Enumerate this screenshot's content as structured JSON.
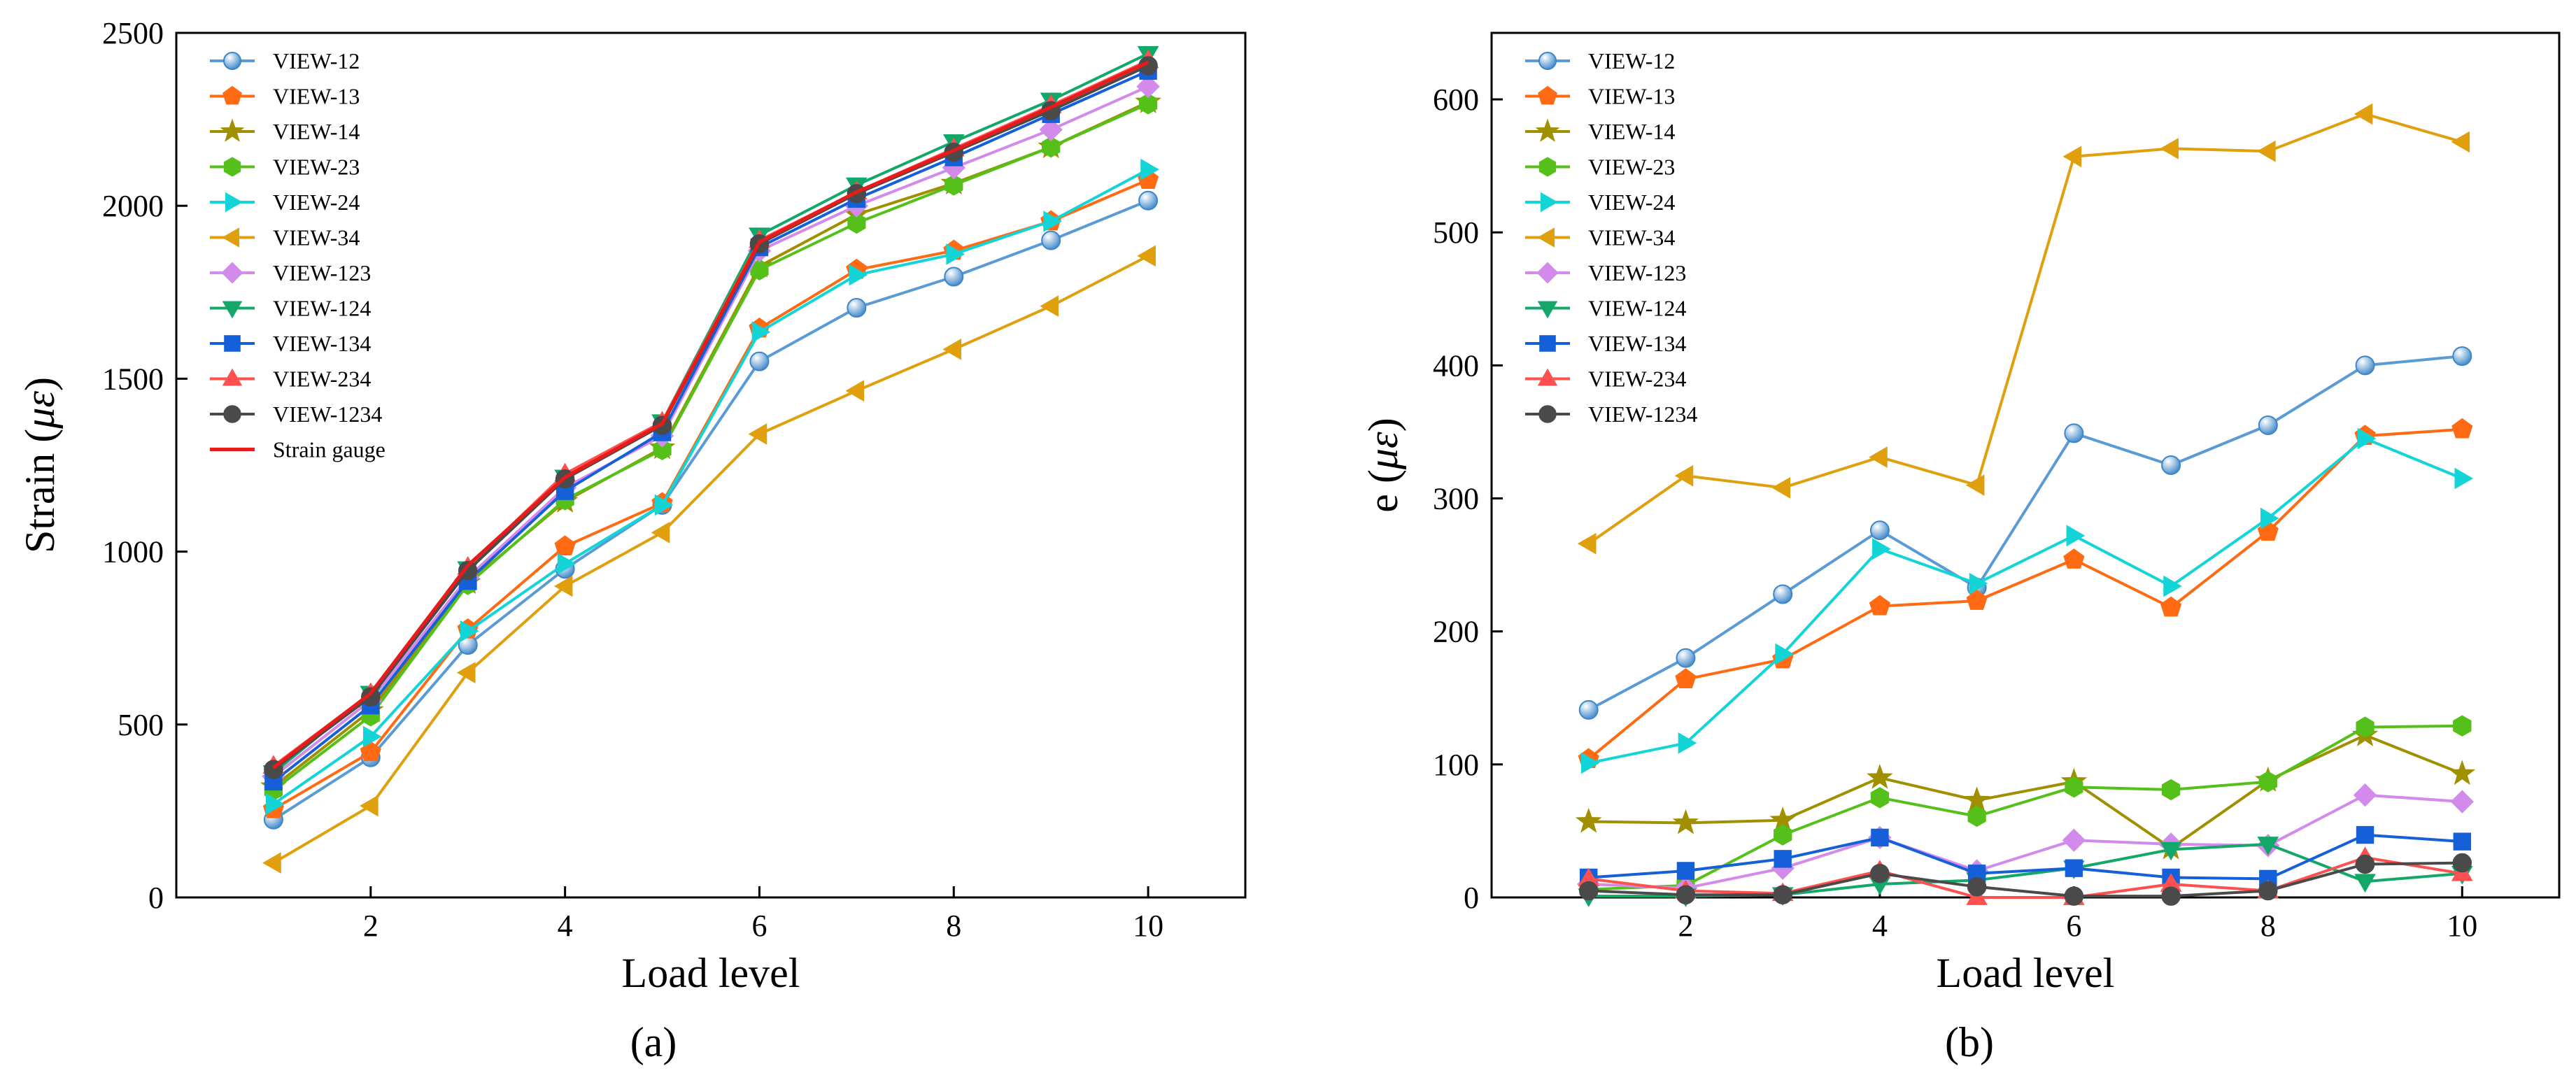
{
  "colors": {
    "VIEW-12": "#5B9BD5",
    "VIEW-13": "#FF6A13",
    "VIEW-14": "#A09000",
    "VIEW-23": "#55C01A",
    "VIEW-24": "#13D4D6",
    "VIEW-34": "#E0A00E",
    "VIEW-123": "#D28BEA",
    "VIEW-124": "#13A86A",
    "VIEW-134": "#1560D8",
    "VIEW-234": "#FF5050",
    "VIEW-1234": "#4A4A4A",
    "Strain gauge": "#E81B1B"
  },
  "markers": {
    "VIEW-12": "circle-shaded",
    "VIEW-13": "pentagon",
    "VIEW-14": "star",
    "VIEW-23": "hexagon",
    "VIEW-24": "triangle-right",
    "VIEW-34": "triangle-left",
    "VIEW-123": "diamond",
    "VIEW-124": "triangle-down",
    "VIEW-134": "square",
    "VIEW-234": "triangle-up",
    "VIEW-1234": "circle",
    "Strain gauge": "none"
  },
  "chart_data": [
    {
      "id": "a",
      "type": "line",
      "caption": "(a)",
      "xlabel": "Load level",
      "ylabel_text": "Strain (",
      "ylabel_unit": "με",
      "ylabel_close": ")",
      "xlim": [
        0,
        11
      ],
      "ylim": [
        0,
        2500
      ],
      "xticks": [
        2,
        4,
        6,
        8,
        10
      ],
      "yticks": [
        0,
        500,
        1000,
        1500,
        2000,
        2500
      ],
      "legend_position": "top-left",
      "x": [
        1,
        2,
        3,
        4,
        5,
        6,
        7,
        8,
        9,
        10
      ],
      "series": [
        {
          "name": "VIEW-12",
          "values": [
            225,
            405,
            730,
            950,
            1135,
            1550,
            1705,
            1795,
            1900,
            2015
          ]
        },
        {
          "name": "VIEW-13",
          "values": [
            255,
            420,
            775,
            1015,
            1140,
            1645,
            1815,
            1870,
            1955,
            2075
          ]
        },
        {
          "name": "VIEW-14",
          "values": [
            320,
            540,
            910,
            1145,
            1300,
            1825,
            1975,
            2065,
            2170,
            2300
          ]
        },
        {
          "name": "VIEW-23",
          "values": [
            310,
            525,
            905,
            1150,
            1295,
            1815,
            1950,
            2060,
            2170,
            2295
          ]
        },
        {
          "name": "VIEW-24",
          "values": [
            270,
            465,
            770,
            965,
            1135,
            1635,
            1800,
            1860,
            1955,
            2105
          ]
        },
        {
          "name": "VIEW-34",
          "values": [
            100,
            265,
            650,
            900,
            1055,
            1340,
            1465,
            1585,
            1710,
            1855
          ]
        },
        {
          "name": "VIEW-123",
          "values": [
            350,
            570,
            925,
            1185,
            1335,
            1870,
            2000,
            2110,
            2220,
            2345
          ]
        },
        {
          "name": "VIEW-124",
          "values": [
            360,
            590,
            950,
            1215,
            1375,
            1915,
            2060,
            2185,
            2305,
            2440
          ]
        },
        {
          "name": "VIEW-134",
          "values": [
            335,
            555,
            915,
            1175,
            1345,
            1880,
            2020,
            2140,
            2265,
            2390
          ]
        },
        {
          "name": "VIEW-234",
          "values": [
            380,
            590,
            955,
            1225,
            1375,
            1900,
            2040,
            2165,
            2290,
            2420
          ]
        },
        {
          "name": "VIEW-1234",
          "values": [
            370,
            580,
            945,
            1210,
            1365,
            1890,
            2035,
            2155,
            2275,
            2405
          ]
        },
        {
          "name": "Strain gauge",
          "values": [
            375,
            590,
            960,
            1215,
            1370,
            1895,
            2040,
            2160,
            2285,
            2415
          ]
        }
      ]
    },
    {
      "id": "b",
      "type": "line",
      "caption": "(b)",
      "xlabel": "Load level",
      "ylabel_text": "e (",
      "ylabel_unit": "με",
      "ylabel_close": ")",
      "xlim": [
        0,
        11
      ],
      "ylim": [
        0,
        650
      ],
      "xticks": [
        2,
        4,
        6,
        8,
        10
      ],
      "yticks": [
        0,
        100,
        200,
        300,
        400,
        500,
        600
      ],
      "legend_position": "top-left",
      "x": [
        1,
        2,
        3,
        4,
        5,
        6,
        7,
        8,
        9,
        10
      ],
      "series": [
        {
          "name": "VIEW-12",
          "values": [
            141,
            180,
            228,
            276,
            233,
            349,
            325,
            355,
            400,
            407
          ]
        },
        {
          "name": "VIEW-13",
          "values": [
            104,
            164,
            179,
            219,
            223,
            254,
            218,
            275,
            347,
            352
          ]
        },
        {
          "name": "VIEW-14",
          "values": [
            57,
            56,
            58,
            90,
            73,
            87,
            37,
            88,
            122,
            93
          ]
        },
        {
          "name": "VIEW-23",
          "values": [
            6,
            9,
            47,
            75,
            61,
            83,
            81,
            87,
            128,
            129
          ]
        },
        {
          "name": "VIEW-24",
          "values": [
            101,
            116,
            183,
            262,
            236,
            272,
            234,
            285,
            345,
            315
          ]
        },
        {
          "name": "VIEW-34",
          "values": [
            266,
            317,
            308,
            331,
            310,
            557,
            563,
            561,
            589,
            568
          ]
        },
        {
          "name": "VIEW-123",
          "values": [
            10,
            7,
            22,
            45,
            20,
            43,
            40,
            39,
            77,
            72
          ]
        },
        {
          "name": "VIEW-124",
          "values": [
            1,
            1,
            2,
            10,
            13,
            22,
            36,
            40,
            12,
            18
          ]
        },
        {
          "name": "VIEW-134",
          "values": [
            15,
            20,
            29,
            45,
            18,
            22,
            15,
            14,
            47,
            42
          ]
        },
        {
          "name": "VIEW-234",
          "values": [
            14,
            5,
            3,
            20,
            0,
            0,
            10,
            5,
            30,
            18
          ]
        },
        {
          "name": "VIEW-1234",
          "values": [
            5,
            2,
            2,
            18,
            8,
            1,
            1,
            5,
            25,
            26
          ]
        }
      ]
    }
  ]
}
